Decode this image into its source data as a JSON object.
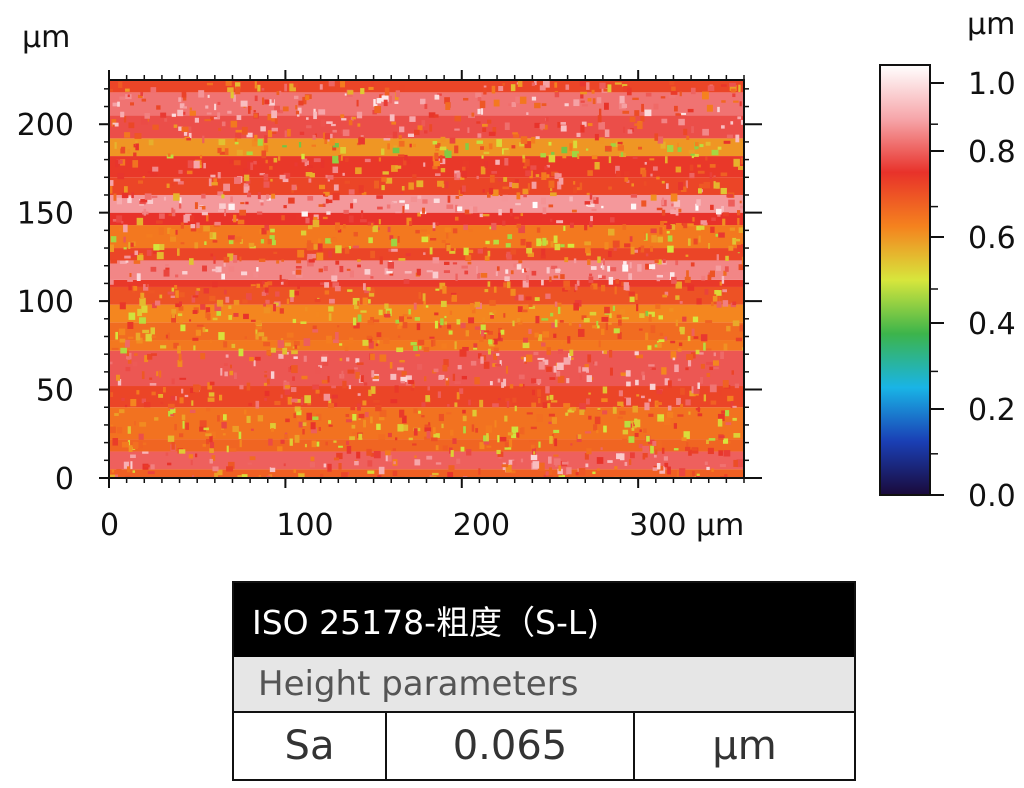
{
  "chart_data": {
    "type": "heatmap",
    "x_unit": "μm",
    "y_unit": "μm",
    "xlim": [
      0,
      360
    ],
    "ylim": [
      0,
      225
    ],
    "x_ticks": [
      {
        "value": 0,
        "label": "0"
      },
      {
        "value": 100,
        "label": "100"
      },
      {
        "value": 200,
        "label": "200"
      },
      {
        "value": 300,
        "label": "300 μm"
      }
    ],
    "y_ticks": [
      {
        "value": 0,
        "label": "0"
      },
      {
        "value": 50,
        "label": "50"
      },
      {
        "value": 100,
        "label": "100"
      },
      {
        "value": 150,
        "label": "150"
      },
      {
        "value": 200,
        "label": "200"
      }
    ],
    "colorbar": {
      "unit": "μm",
      "range": [
        0.0,
        1.0
      ],
      "ticks": [
        "0.0",
        "0.2",
        "0.4",
        "0.6",
        "0.8",
        "1.0"
      ],
      "colors": [
        "#1a0a3a",
        "#1a3fb5",
        "#19b4e6",
        "#3cb44b",
        "#d7e63c",
        "#f5821e",
        "#e8322a",
        "#f6a6aa",
        "#ffffff"
      ]
    },
    "bands": [
      {
        "y": [
          0,
          5
        ],
        "height": 0.68
      },
      {
        "y": [
          5,
          15
        ],
        "height": 0.8
      },
      {
        "y": [
          15,
          22
        ],
        "height": 0.67
      },
      {
        "y": [
          22,
          40
        ],
        "height": 0.65
      },
      {
        "y": [
          40,
          52
        ],
        "height": 0.72
      },
      {
        "y": [
          52,
          72
        ],
        "height": 0.79
      },
      {
        "y": [
          72,
          78
        ],
        "height": 0.64
      },
      {
        "y": [
          78,
          88
        ],
        "height": 0.66
      },
      {
        "y": [
          88,
          98
        ],
        "height": 0.62
      },
      {
        "y": [
          98,
          108
        ],
        "height": 0.7
      },
      {
        "y": [
          108,
          112
        ],
        "height": 0.74
      },
      {
        "y": [
          112,
          123
        ],
        "height": 0.84
      },
      {
        "y": [
          123,
          130
        ],
        "height": 0.72
      },
      {
        "y": [
          130,
          143
        ],
        "height": 0.64
      },
      {
        "y": [
          143,
          150
        ],
        "height": 0.75
      },
      {
        "y": [
          150,
          160
        ],
        "height": 0.86
      },
      {
        "y": [
          160,
          170
        ],
        "height": 0.72
      },
      {
        "y": [
          170,
          182
        ],
        "height": 0.74
      },
      {
        "y": [
          182,
          192
        ],
        "height": 0.6
      },
      {
        "y": [
          192,
          205
        ],
        "height": 0.78
      },
      {
        "y": [
          205,
          218
        ],
        "height": 0.82
      },
      {
        "y": [
          218,
          225
        ],
        "height": 0.72
      }
    ]
  },
  "table": {
    "title": "ISO 25178-粗度（S-L)",
    "section": "Height parameters",
    "rows": [
      {
        "name": "Sa",
        "value": "0.065",
        "unit": "μm"
      }
    ]
  }
}
